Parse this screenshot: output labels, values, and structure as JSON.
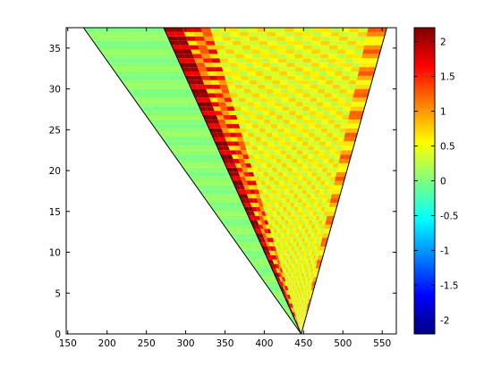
{
  "chart_data": {
    "type": "heatmap",
    "title": "",
    "xlabel": "",
    "ylabel": "",
    "xlim": [
      148,
      568
    ],
    "ylim": [
      0,
      37.5
    ],
    "xticks": [
      150,
      200,
      250,
      300,
      350,
      400,
      450,
      500,
      550
    ],
    "yticks": [
      0,
      5,
      10,
      15,
      20,
      25,
      30,
      35
    ],
    "colorbar": {
      "colormap": "jet",
      "range": [
        -2.2,
        2.2
      ],
      "ticks": [
        -2,
        -1.5,
        -1,
        -0.5,
        0,
        0.5,
        1,
        1.5,
        2
      ]
    },
    "lines": [
      {
        "name": "",
        "points": [
          [
            447,
            0
          ],
          [
            170,
            37.5
          ]
        ]
      },
      {
        "name": "",
        "points": [
          [
            447,
            0
          ],
          [
            272,
            37.5
          ]
        ]
      },
      {
        "name": "",
        "points": [
          [
            447,
            0
          ],
          [
            556,
            37.5
          ]
        ]
      }
    ],
    "regions": {
      "left_fan": {
        "apex": [
          447,
          0
        ],
        "edges": [
          170,
          272
        ],
        "level": 0.05
      },
      "main_fan": {
        "apex": [
          447,
          0
        ],
        "edges": [
          272,
          556
        ],
        "level": 0.5,
        "peak": 2.2
      }
    },
    "grid": false,
    "legend": "none"
  }
}
